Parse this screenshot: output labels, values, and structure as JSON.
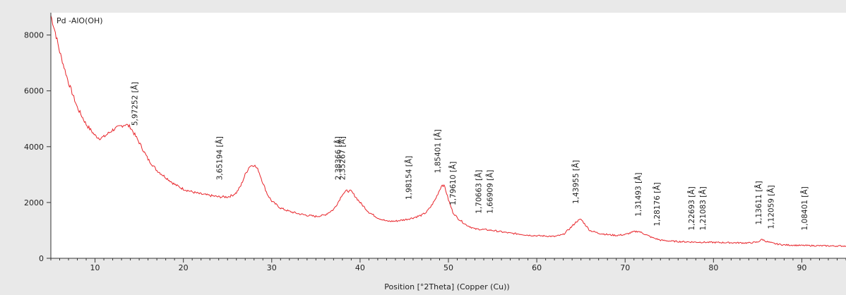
{
  "chart_data": {
    "type": "line",
    "title": "Pd -AlO(OH)",
    "xlabel": "Position [°2Theta] (Copper (Cu))",
    "ylabel": "",
    "xlim": [
      5,
      95
    ],
    "ylim": [
      0,
      8800
    ],
    "x_ticks": [
      10,
      20,
      30,
      40,
      50,
      60,
      70,
      80,
      90
    ],
    "y_ticks": [
      0,
      2000,
      4000,
      6000,
      8000
    ],
    "grid": false,
    "line_color": "#e8242a",
    "series": [
      {
        "x": [
          5,
          5.5,
          6,
          7,
          8,
          9,
          10,
          10.5,
          11,
          12,
          13,
          13.5,
          14,
          15,
          16,
          17,
          18,
          19,
          20,
          21,
          22,
          23,
          24,
          25,
          25.5,
          26,
          26.5,
          27,
          27.5,
          28,
          28.5,
          29,
          29.5,
          30,
          31,
          32,
          33,
          34,
          35,
          36,
          37,
          37.5,
          38,
          38.5,
          39,
          39.5,
          40,
          41,
          42,
          43,
          44,
          45,
          46,
          47,
          47.5,
          48,
          48.5,
          49,
          49.3,
          49.6,
          50,
          50.5,
          51,
          52,
          53,
          54,
          55,
          56,
          57,
          58,
          59,
          60,
          61,
          62,
          63,
          63.5,
          64,
          64.5,
          65,
          65.5,
          66,
          67,
          68,
          69,
          70,
          71,
          71.5,
          72,
          73,
          74,
          75,
          76,
          78,
          80,
          82,
          84,
          85,
          85.5,
          86,
          87,
          88,
          90,
          92,
          94,
          95
        ],
        "y": [
          8700,
          8100,
          7400,
          6300,
          5400,
          4800,
          4400,
          4300,
          4350,
          4600,
          4750,
          4800,
          4700,
          4150,
          3550,
          3150,
          2900,
          2650,
          2480,
          2380,
          2300,
          2250,
          2200,
          2200,
          2250,
          2350,
          2600,
          3000,
          3300,
          3350,
          3150,
          2700,
          2300,
          2050,
          1800,
          1680,
          1600,
          1540,
          1500,
          1550,
          1750,
          2000,
          2300,
          2420,
          2400,
          2200,
          2000,
          1650,
          1450,
          1330,
          1330,
          1380,
          1450,
          1550,
          1650,
          1850,
          2100,
          2450,
          2650,
          2550,
          2100,
          1650,
          1450,
          1200,
          1050,
          1030,
          1000,
          950,
          900,
          870,
          830,
          810,
          800,
          780,
          850,
          1000,
          1150,
          1320,
          1400,
          1200,
          1000,
          900,
          850,
          820,
          850,
          950,
          970,
          900,
          750,
          650,
          620,
          600,
          580,
          570,
          560,
          550,
          580,
          680,
          600,
          520,
          480,
          460,
          450,
          440,
          440
        ]
      }
    ],
    "annotations": [
      {
        "text": "5,97252 [Å]",
        "x": 14.8,
        "y": 4750
      },
      {
        "text": "3,65194 [Å]",
        "x": 24.4,
        "y": 2800
      },
      {
        "text": "2,38366 [Å]",
        "x": 37.8,
        "y": 2800
      },
      {
        "text": "2,35267 [Å]",
        "x": 38.3,
        "y": 2800
      },
      {
        "text": "1,98154 [Å]",
        "x": 45.8,
        "y": 2100
      },
      {
        "text": "1,85401 [Å]",
        "x": 49.1,
        "y": 3050
      },
      {
        "text": "1,79610 [Å]",
        "x": 50.8,
        "y": 1900
      },
      {
        "text": "1,70663 [Å]",
        "x": 53.7,
        "y": 1600
      },
      {
        "text": "1,66909 [Å]",
        "x": 55.0,
        "y": 1600
      },
      {
        "text": "1,43955 [Å]",
        "x": 64.7,
        "y": 1950
      },
      {
        "text": "1,31493 [Å]",
        "x": 71.8,
        "y": 1500
      },
      {
        "text": "1,28176 [Å]",
        "x": 73.9,
        "y": 1150
      },
      {
        "text": "1,22693 [Å]",
        "x": 77.8,
        "y": 1000
      },
      {
        "text": "1,21083 [Å]",
        "x": 79.1,
        "y": 1000
      },
      {
        "text": "1,13611 [Å]",
        "x": 85.4,
        "y": 1200
      },
      {
        "text": "1,12059 [Å]",
        "x": 86.8,
        "y": 1050
      },
      {
        "text": "1,08401 [Å]",
        "x": 90.6,
        "y": 1000
      }
    ]
  }
}
